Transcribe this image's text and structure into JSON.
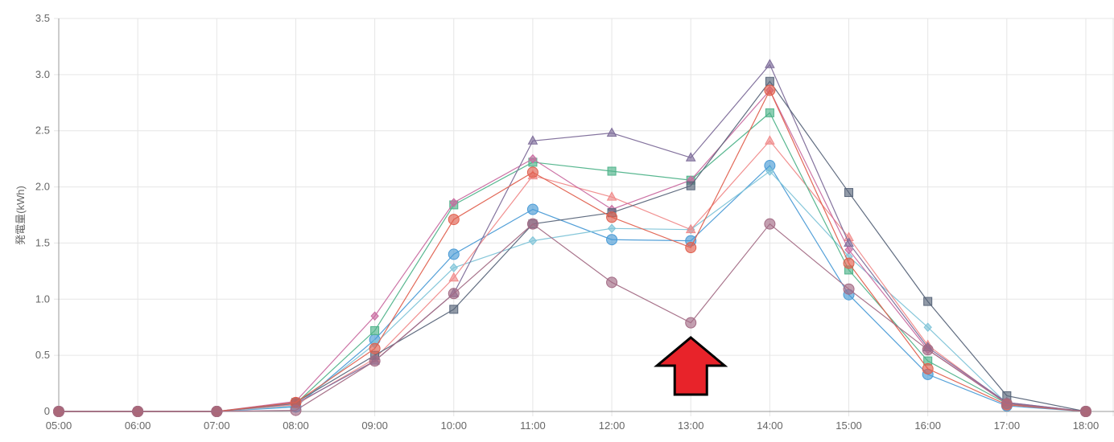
{
  "chart_data": {
    "type": "line",
    "title": "",
    "ylabel": "発電量(kWh)",
    "xlabel": "",
    "x": [
      "05:00",
      "06:00",
      "07:00",
      "08:00",
      "09:00",
      "10:00",
      "11:00",
      "12:00",
      "13:00",
      "14:00",
      "15:00",
      "16:00",
      "17:00",
      "18:00"
    ],
    "ylim": [
      0,
      3.5
    ],
    "yticks": [
      "0",
      "0.5",
      "1.0",
      "1.5",
      "2.0",
      "2.5",
      "3.0",
      "3.5"
    ],
    "grid": true,
    "series": [
      {
        "marker": "circle",
        "color": "#4a9bd6",
        "values": [
          0,
          0,
          0,
          0.04,
          0.64,
          1.4,
          1.8,
          1.53,
          1.52,
          2.19,
          1.04,
          0.33,
          0.05,
          0
        ]
      },
      {
        "marker": "diamond",
        "color": "#7fc4d8",
        "values": [
          0,
          0,
          0,
          0.05,
          0.6,
          1.28,
          1.52,
          1.63,
          1.62,
          2.14,
          1.38,
          0.75,
          0.07,
          0
        ]
      },
      {
        "marker": "triangle",
        "color": "#f08a8a",
        "values": [
          0,
          0,
          0,
          0.06,
          0.47,
          1.19,
          2.1,
          1.91,
          1.62,
          2.41,
          1.55,
          0.59,
          0.07,
          0
        ]
      },
      {
        "marker": "square",
        "color": "#4fb38a",
        "values": [
          0,
          0,
          0,
          0.07,
          0.72,
          1.84,
          2.22,
          2.14,
          2.06,
          2.66,
          1.26,
          0.45,
          0.07,
          0
        ]
      },
      {
        "marker": "diamond",
        "color": "#c96aa0",
        "values": [
          0,
          0,
          0,
          0.09,
          0.85,
          1.86,
          2.25,
          1.8,
          2.06,
          2.86,
          1.44,
          0.55,
          0.08,
          0
        ]
      },
      {
        "marker": "triangle",
        "color": "#7d6c99",
        "values": [
          0,
          0,
          0,
          0.07,
          0.45,
          1.05,
          2.41,
          2.48,
          2.26,
          3.09,
          1.5,
          0.57,
          0.08,
          0
        ]
      },
      {
        "marker": "square",
        "color": "#58657a",
        "values": [
          0,
          0,
          0,
          0.08,
          0.5,
          0.91,
          1.67,
          1.77,
          2.01,
          2.94,
          1.95,
          0.98,
          0.14,
          0
        ]
      },
      {
        "marker": "circle",
        "color": "#e0604e",
        "values": [
          0,
          0,
          0,
          0.08,
          0.56,
          1.71,
          2.13,
          1.73,
          1.46,
          2.86,
          1.32,
          0.38,
          0.06,
          0
        ]
      },
      {
        "marker": "circle",
        "color": "#a36b85",
        "values": [
          0,
          0,
          0,
          0.01,
          0.45,
          1.05,
          1.67,
          1.15,
          0.79,
          1.67,
          1.09,
          0.55,
          0.07,
          0
        ]
      }
    ]
  },
  "annotation": {
    "kind": "arrow-up",
    "color": "#e8232a",
    "at_x": "13:00"
  }
}
